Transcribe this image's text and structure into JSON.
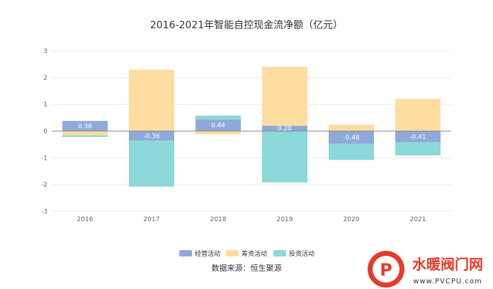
{
  "chart_data": {
    "type": "bar",
    "stacked": true,
    "title": "2016-2021年智能自控现金流净额（亿元）",
    "categories": [
      "2016",
      "2017",
      "2018",
      "2019",
      "2020",
      "2021"
    ],
    "ylim": [
      -3,
      3
    ],
    "yticks": [
      3,
      2,
      1,
      0,
      -1,
      -2,
      -3
    ],
    "grid": true,
    "legend_position": "bottom",
    "series": [
      {
        "name": "经营活动",
        "color": "#8eaadb",
        "values": [
          0.38,
          -0.36,
          0.44,
          0.2,
          -0.48,
          -0.41
        ],
        "labels": [
          "0.38",
          "-0.36",
          "0.44",
          "0.20",
          "-0.48",
          "-0.41"
        ]
      },
      {
        "name": "筹资活动",
        "color": "#ffdca0",
        "values": [
          -0.16,
          2.3,
          -0.12,
          2.2,
          0.24,
          1.2
        ]
      },
      {
        "name": "投资活动",
        "color": "#8dd8d8",
        "values": [
          -0.06,
          -1.72,
          0.14,
          -1.92,
          -0.6,
          -0.5
        ]
      }
    ]
  },
  "source": "数据来源：恒生聚源",
  "watermark": {
    "text": "水暖阀门网",
    "url": "www.PVCPU.com",
    "logo_letter": "P"
  }
}
